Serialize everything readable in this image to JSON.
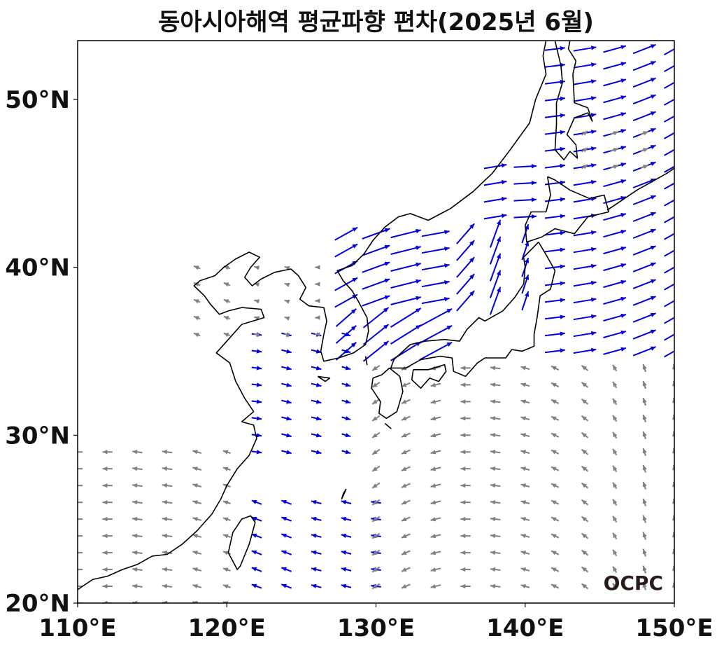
{
  "title": "동아시아해역 평균파향 편차(2025년 6월)",
  "logo_text": "OCPC",
  "extent": {
    "lon": [
      110,
      150
    ],
    "lat": [
      20,
      53.5
    ]
  },
  "x_ticks": [
    {
      "value": 110,
      "label": "110°E"
    },
    {
      "value": 120,
      "label": "120°E"
    },
    {
      "value": 130,
      "label": "130°E"
    },
    {
      "value": 140,
      "label": "140°E"
    },
    {
      "value": 150,
      "label": "150°E"
    }
  ],
  "y_ticks": [
    {
      "value": 20,
      "label": "20°N"
    },
    {
      "value": 30,
      "label": "30°N"
    },
    {
      "value": 40,
      "label": "40°N"
    },
    {
      "value": 50,
      "label": "50°N"
    }
  ],
  "colors": {
    "significant": "#0000dd",
    "normal": "#808080",
    "coast": "#000000"
  },
  "coastlines": [
    [
      [
        110,
        20.8
      ],
      [
        111,
        21.4
      ],
      [
        112,
        21.6
      ],
      [
        113,
        22.0
      ],
      [
        114,
        22.3
      ],
      [
        115,
        22.8
      ],
      [
        116,
        22.9
      ],
      [
        117,
        23.5
      ],
      [
        118,
        24.3
      ],
      [
        119,
        25.3
      ],
      [
        119.6,
        26.2
      ],
      [
        120,
        27.0
      ],
      [
        120.7,
        28.0
      ],
      [
        121.5,
        28.8
      ],
      [
        122,
        29.8
      ],
      [
        121.8,
        30.6
      ],
      [
        121,
        30.8
      ],
      [
        121.8,
        31.4
      ],
      [
        121.2,
        32.2
      ],
      [
        120.6,
        33.2
      ],
      [
        120.2,
        34.3
      ],
      [
        119.3,
        34.9
      ],
      [
        120.2,
        35.8
      ],
      [
        121,
        36.6
      ],
      [
        122.5,
        37.0
      ],
      [
        122.3,
        37.5
      ],
      [
        121,
        37.6
      ],
      [
        120.1,
        37.4
      ],
      [
        119.5,
        37.2
      ],
      [
        118.9,
        37.8
      ],
      [
        118.5,
        38.3
      ],
      [
        117.8,
        38.9
      ],
      [
        118.2,
        39.2
      ],
      [
        119.2,
        39.5
      ],
      [
        119.8,
        40.0
      ],
      [
        120.6,
        40.5
      ],
      [
        121.5,
        40.9
      ],
      [
        122.2,
        40.6
      ],
      [
        121.6,
        40.0
      ],
      [
        121.2,
        39.4
      ],
      [
        121.7,
        38.9
      ],
      [
        122.3,
        39.3
      ],
      [
        123.2,
        39.7
      ],
      [
        124.3,
        39.9
      ],
      [
        124.8,
        39.5
      ],
      [
        125.3,
        38.8
      ],
      [
        124.9,
        38.1
      ],
      [
        125.5,
        37.7
      ],
      [
        126.5,
        37.6
      ],
      [
        126.7,
        36.8
      ],
      [
        126.5,
        36.0
      ],
      [
        126.3,
        35.0
      ],
      [
        126.5,
        34.4
      ],
      [
        127.5,
        34.6
      ],
      [
        128.5,
        34.9
      ],
      [
        129.3,
        35.4
      ],
      [
        129.5,
        36.2
      ],
      [
        129.4,
        37.0
      ],
      [
        128.8,
        38.0
      ],
      [
        128.4,
        38.6
      ],
      [
        127.8,
        39.2
      ],
      [
        127.4,
        39.8
      ],
      [
        128.4,
        40.1
      ],
      [
        129.2,
        40.8
      ],
      [
        129.8,
        41.6
      ],
      [
        130.6,
        42.4
      ],
      [
        131.5,
        43.0
      ],
      [
        132.3,
        43.2
      ],
      [
        133.5,
        42.8
      ],
      [
        135,
        43.5
      ],
      [
        136.5,
        44.5
      ],
      [
        137.8,
        45.6
      ],
      [
        139,
        47.0
      ],
      [
        140.3,
        48.6
      ],
      [
        140.7,
        50.0
      ],
      [
        141.4,
        51.5
      ],
      [
        141.2,
        52.6
      ],
      [
        141.4,
        53.5
      ]
    ],
    [
      [
        141.5,
        45.4
      ],
      [
        142,
        45.2
      ],
      [
        143,
        44.6
      ],
      [
        144.3,
        44.1
      ],
      [
        145.3,
        44.3
      ],
      [
        145.6,
        43.3
      ],
      [
        144.2,
        43.0
      ],
      [
        143.3,
        42.0
      ],
      [
        142,
        42.3
      ],
      [
        141.1,
        41.8
      ],
      [
        140.1,
        41.5
      ],
      [
        140.0,
        42.5
      ],
      [
        140.4,
        43.3
      ],
      [
        141.4,
        43.3
      ],
      [
        141.7,
        44.3
      ],
      [
        141.5,
        45.4
      ]
    ],
    [
      [
        140.9,
        41.5
      ],
      [
        141.5,
        40.6
      ],
      [
        142,
        39.8
      ],
      [
        141.7,
        38.7
      ],
      [
        141,
        38.3
      ],
      [
        140.8,
        37.0
      ],
      [
        140.6,
        36.0
      ],
      [
        140.6,
        35.3
      ],
      [
        139.8,
        35.0
      ],
      [
        139.1,
        35.1
      ],
      [
        138.7,
        34.6
      ],
      [
        137.3,
        34.6
      ],
      [
        136.8,
        34.3
      ],
      [
        136,
        33.5
      ],
      [
        135.2,
        33.8
      ],
      [
        135.1,
        34.6
      ],
      [
        134.3,
        34.7
      ],
      [
        133,
        34.5
      ],
      [
        132,
        34.0
      ],
      [
        131,
        34.0
      ],
      [
        131.2,
        34.5
      ],
      [
        132.3,
        35.4
      ],
      [
        133.3,
        35.6
      ],
      [
        134.6,
        35.7
      ],
      [
        135.6,
        35.6
      ],
      [
        136.1,
        36.3
      ],
      [
        136.9,
        37.0
      ],
      [
        137.3,
        36.8
      ],
      [
        138.5,
        37.4
      ],
      [
        139.3,
        38.2
      ],
      [
        139.9,
        39.0
      ],
      [
        140.0,
        40.0
      ],
      [
        139.9,
        40.6
      ],
      [
        140.9,
        41.5
      ]
    ],
    [
      [
        130.9,
        34.0
      ],
      [
        131.6,
        33.5
      ],
      [
        131.8,
        32.6
      ],
      [
        131.4,
        31.4
      ],
      [
        130.7,
        31.0
      ],
      [
        130.2,
        31.3
      ],
      [
        130.3,
        32.0
      ],
      [
        129.7,
        32.8
      ],
      [
        129.8,
        33.4
      ],
      [
        130.4,
        33.6
      ],
      [
        130.9,
        34.0
      ]
    ],
    [
      [
        132.5,
        33.9
      ],
      [
        133.5,
        33.9
      ],
      [
        134.6,
        34.2
      ],
      [
        134.7,
        33.8
      ],
      [
        134.2,
        33.2
      ],
      [
        133.6,
        33.4
      ],
      [
        133.0,
        32.8
      ],
      [
        132.4,
        33.3
      ],
      [
        132.5,
        33.9
      ]
    ],
    [
      [
        120.1,
        23.0
      ],
      [
        120.7,
        22.0
      ],
      [
        120.9,
        22.2
      ],
      [
        121.5,
        23.5
      ],
      [
        121.9,
        24.8
      ],
      [
        121.6,
        25.2
      ],
      [
        121.0,
        25.0
      ],
      [
        120.4,
        24.2
      ],
      [
        120.1,
        23.0
      ]
    ],
    [
      [
        142.0,
        53.5
      ],
      [
        142.4,
        52.0
      ],
      [
        142.5,
        51.0
      ],
      [
        142.1,
        49.8
      ],
      [
        142.1,
        48.5
      ],
      [
        142.0,
        47.0
      ],
      [
        142.6,
        46.4
      ],
      [
        143.0,
        46.9
      ],
      [
        143.5,
        46.5
      ],
      [
        143.4,
        47.3
      ],
      [
        142.8,
        47.9
      ],
      [
        143.3,
        48.9
      ],
      [
        144.2,
        49.2
      ],
      [
        144.5,
        48.7
      ],
      [
        144.2,
        49.5
      ],
      [
        143.3,
        49.8
      ],
      [
        143.2,
        51.5
      ],
      [
        143.4,
        52.3
      ],
      [
        142.9,
        53.0
      ],
      [
        143.0,
        53.5
      ]
    ],
    [
      [
        145.5,
        43.4
      ],
      [
        146.5,
        44.0
      ],
      [
        147.5,
        44.6
      ],
      [
        148.7,
        45.2
      ],
      [
        149.5,
        45.6
      ],
      [
        150,
        45.9
      ]
    ],
    [
      [
        126.1,
        33.5
      ],
      [
        126.9,
        33.4
      ],
      [
        126.6,
        33.2
      ],
      [
        126.1,
        33.5
      ]
    ],
    [
      [
        129.3,
        34.7
      ],
      [
        129.4,
        34.2
      ],
      [
        129.3,
        34.7
      ]
    ],
    [
      [
        128.0,
        26.8
      ],
      [
        127.7,
        26.2
      ],
      [
        127.8,
        26.5
      ],
      [
        128.0,
        26.8
      ]
    ],
    [
      [
        130.6,
        30.7
      ],
      [
        131.0,
        30.4
      ],
      [
        130.6,
        30.7
      ]
    ]
  ],
  "vector_fields": [
    {
      "significant": true,
      "lon": [
        128,
        130,
        132,
        134,
        136,
        138,
        140
      ],
      "lat": [
        38,
        39,
        40,
        41,
        42
      ],
      "u": [
        1.8,
        2.2,
        2.4,
        2.2,
        1.4,
        0.8,
        0.5
      ],
      "v": [
        1.0,
        0.8,
        0.6,
        0.4,
        1.6,
        2.2,
        1.5
      ]
    },
    {
      "significant": true,
      "lon": [
        128,
        130,
        132,
        134
      ],
      "lat": [
        35,
        36,
        37
      ],
      "u": [
        1.6,
        2.0,
        2.4,
        2.6
      ],
      "v": [
        1.4,
        1.6,
        1.5,
        1.4
      ]
    },
    {
      "significant": true,
      "lon": [
        142,
        144,
        146,
        148,
        150
      ],
      "lat": [
        35,
        36,
        37,
        38,
        39,
        40,
        41,
        42,
        43,
        44,
        45,
        46,
        47,
        48,
        49,
        50,
        51,
        52,
        53
      ],
      "u": [
        1.6,
        1.8,
        1.8,
        1.8,
        1.6
      ],
      "v": [
        0.2,
        0.3,
        0.5,
        0.7,
        0.9
      ]
    },
    {
      "significant": true,
      "lon": [
        138,
        140
      ],
      "lat": [
        43,
        44,
        45,
        46
      ],
      "u": [
        1.8,
        1.8
      ],
      "v": [
        0.3,
        0.1
      ]
    },
    {
      "significant": true,
      "lon": [
        122,
        124,
        126,
        128
      ],
      "lat": [
        29,
        30,
        31,
        32,
        33,
        34,
        35,
        36
      ],
      "u": [
        0.8,
        0.8,
        0.8,
        0.7
      ],
      "v": [
        -0.1,
        -0.2,
        -0.2,
        -0.2
      ]
    },
    {
      "significant": true,
      "lon": [
        122,
        124,
        126,
        128,
        130
      ],
      "lat": [
        21,
        22,
        23,
        24,
        25,
        26
      ],
      "u": [
        -0.8,
        -0.8,
        -0.8,
        -0.8,
        -0.8
      ],
      "v": [
        0.3,
        0.3,
        0.2,
        0.2,
        0.1
      ]
    },
    {
      "significant": false,
      "lon": [
        130,
        132,
        134,
        136,
        138,
        140,
        142,
        144,
        146,
        148,
        150
      ],
      "lat": [
        21,
        22,
        23,
        24,
        25,
        26,
        27,
        28,
        29,
        30,
        31,
        32,
        33,
        34
      ],
      "u": [
        -0.6,
        -0.7,
        -0.8,
        -0.8,
        -0.8,
        -0.7,
        -0.6,
        -0.5,
        -0.3,
        -0.2,
        -0.1
      ],
      "v": [
        -0.4,
        -0.3,
        -0.2,
        0.0,
        0.1,
        0.2,
        0.3,
        0.4,
        0.5,
        0.6,
        0.6
      ]
    },
    {
      "significant": false,
      "lon": [
        110,
        112,
        114,
        116,
        118,
        120
      ],
      "lat": [
        20,
        21,
        22,
        23,
        24,
        25,
        26,
        27,
        28,
        29
      ],
      "u": [
        -0.8,
        -0.8,
        -0.8,
        -0.8,
        -0.7,
        -0.6
      ],
      "v": [
        0.0,
        0.0,
        0.1,
        0.1,
        0.2,
        0.2
      ]
    },
    {
      "significant": false,
      "lon": [
        118,
        120,
        122,
        124,
        126
      ],
      "lat": [
        36,
        37,
        38,
        39,
        40
      ],
      "u": [
        -0.5,
        -0.5,
        -0.4,
        -0.3,
        -0.2
      ],
      "v": [
        0.2,
        0.2,
        0.1,
        0.1,
        0.0
      ]
    },
    {
      "significant": false,
      "lon": [
        144,
        146,
        148
      ],
      "lat": [
        46,
        47,
        48
      ],
      "u": [
        0.5,
        0.6,
        0.6
      ],
      "v": [
        0.3,
        0.2,
        0.2
      ]
    }
  ]
}
